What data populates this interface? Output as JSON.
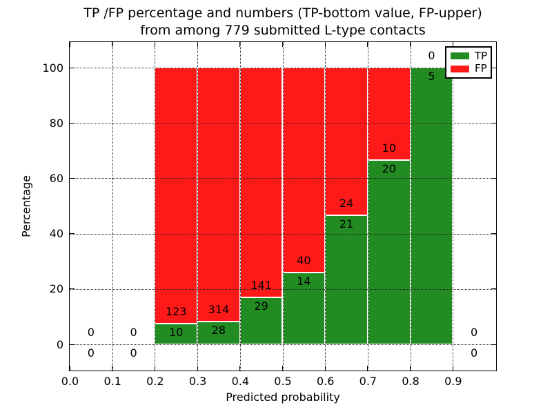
{
  "figure": {
    "title_line1": "TP /FP percentage and numbers (TP-bottom value, FP-upper)",
    "title_line2": "from among 779 submitted L-type contacts"
  },
  "chart_data": {
    "type": "bar",
    "subtype": "stacked-percentage",
    "title": "TP /FP percentage and numbers (TP-bottom value, FP-upper) from among 779 submitted L-type contacts",
    "xlabel": "Predicted probability",
    "ylabel": "Percentage",
    "xlim": [
      0.0,
      1.0
    ],
    "ylim": [
      -10,
      110
    ],
    "xtick_labels": [
      "0.0",
      "0.1",
      "0.2",
      "0.3",
      "0.4",
      "0.5",
      "0.6",
      "0.7",
      "0.8",
      "0.9"
    ],
    "ytick_values": [
      0,
      20,
      40,
      60,
      80,
      100
    ],
    "grid": "dotted",
    "total_contacts": 779,
    "colors": {
      "tp": "#228B22",
      "fp": "#FF1A1A"
    },
    "legend": {
      "position": "upper right",
      "entries": [
        {
          "name": "TP",
          "color_key": "tp"
        },
        {
          "name": "FP",
          "color_key": "fp"
        }
      ]
    },
    "bins": [
      {
        "range": [
          0.0,
          0.1
        ],
        "tp": 0,
        "fp": 0
      },
      {
        "range": [
          0.1,
          0.2
        ],
        "tp": 0,
        "fp": 0
      },
      {
        "range": [
          0.2,
          0.3
        ],
        "tp": 10,
        "fp": 123
      },
      {
        "range": [
          0.3,
          0.4
        ],
        "tp": 28,
        "fp": 314
      },
      {
        "range": [
          0.4,
          0.5
        ],
        "tp": 29,
        "fp": 141
      },
      {
        "range": [
          0.5,
          0.6
        ],
        "tp": 14,
        "fp": 40
      },
      {
        "range": [
          0.6,
          0.7
        ],
        "tp": 21,
        "fp": 24
      },
      {
        "range": [
          0.7,
          0.8
        ],
        "tp": 20,
        "fp": 10
      },
      {
        "range": [
          0.8,
          0.9
        ],
        "tp": 5,
        "fp": 0
      },
      {
        "range": [
          0.9,
          1.0
        ],
        "tp": 0,
        "fp": 0
      }
    ]
  }
}
